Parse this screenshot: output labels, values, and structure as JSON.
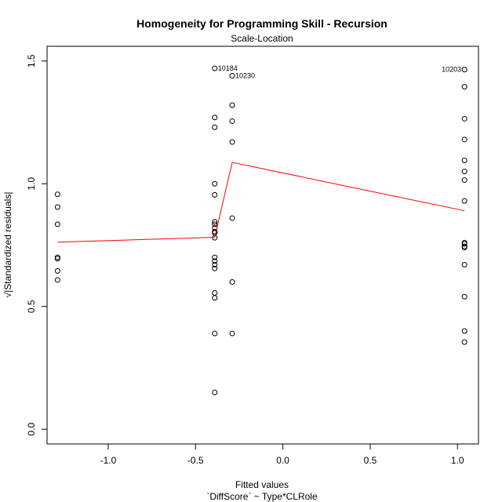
{
  "chart_data": {
    "type": "scatter",
    "title": "Homogeneity for Programming Skill - Recursion",
    "subtitle": "Scale-Location",
    "xlabel": "Fitted values",
    "xlabel2": "`DiffScore` ~ Type*CLRole",
    "ylabel": "√|Standardized residuals|",
    "xlim": [
      -1.35,
      1.12
    ],
    "ylim": [
      -0.06,
      1.56
    ],
    "x_ticks": [
      -1.0,
      -0.5,
      0.0,
      0.5,
      1.0
    ],
    "x_tick_labels": [
      "-1.0",
      "-0.5",
      "0.0",
      "0.5",
      "1.0"
    ],
    "y_ticks": [
      0.0,
      0.5,
      1.0,
      1.5
    ],
    "y_tick_labels": [
      "0.0",
      "0.5",
      "1.0",
      "1.5"
    ],
    "grid": false,
    "point_color": "#000000",
    "smooth_color": "#ff0000",
    "points": [
      {
        "x": -1.29,
        "y": 0.957
      },
      {
        "x": -1.29,
        "y": 0.905
      },
      {
        "x": -1.29,
        "y": 0.835
      },
      {
        "x": -1.29,
        "y": 0.7
      },
      {
        "x": -1.29,
        "y": 0.695
      },
      {
        "x": -1.29,
        "y": 0.645
      },
      {
        "x": -1.29,
        "y": 0.608
      },
      {
        "x": -0.39,
        "y": 1.47
      },
      {
        "x": -0.39,
        "y": 1.27
      },
      {
        "x": -0.39,
        "y": 1.23
      },
      {
        "x": -0.39,
        "y": 1.0
      },
      {
        "x": -0.39,
        "y": 0.955
      },
      {
        "x": -0.39,
        "y": 0.845
      },
      {
        "x": -0.39,
        "y": 0.835
      },
      {
        "x": -0.39,
        "y": 0.82
      },
      {
        "x": -0.39,
        "y": 0.805
      },
      {
        "x": -0.39,
        "y": 0.8
      },
      {
        "x": -0.39,
        "y": 0.78
      },
      {
        "x": -0.39,
        "y": 0.7
      },
      {
        "x": -0.39,
        "y": 0.685
      },
      {
        "x": -0.39,
        "y": 0.67
      },
      {
        "x": -0.39,
        "y": 0.655
      },
      {
        "x": -0.39,
        "y": 0.555
      },
      {
        "x": -0.39,
        "y": 0.535
      },
      {
        "x": -0.39,
        "y": 0.39
      },
      {
        "x": -0.39,
        "y": 0.15
      },
      {
        "x": -0.29,
        "y": 1.44
      },
      {
        "x": -0.29,
        "y": 1.32
      },
      {
        "x": -0.29,
        "y": 1.255
      },
      {
        "x": -0.29,
        "y": 1.17
      },
      {
        "x": -0.29,
        "y": 0.86
      },
      {
        "x": -0.29,
        "y": 0.6
      },
      {
        "x": -0.29,
        "y": 0.39
      },
      {
        "x": 1.04,
        "y": 1.465
      },
      {
        "x": 1.04,
        "y": 1.395
      },
      {
        "x": 1.04,
        "y": 1.265
      },
      {
        "x": 1.04,
        "y": 1.18
      },
      {
        "x": 1.04,
        "y": 1.095
      },
      {
        "x": 1.04,
        "y": 1.05
      },
      {
        "x": 1.04,
        "y": 1.015
      },
      {
        "x": 1.04,
        "y": 0.93
      },
      {
        "x": 1.04,
        "y": 0.76
      },
      {
        "x": 1.04,
        "y": 0.755
      },
      {
        "x": 1.04,
        "y": 0.745
      },
      {
        "x": 1.04,
        "y": 0.74
      },
      {
        "x": 1.04,
        "y": 0.67
      },
      {
        "x": 1.04,
        "y": 0.54
      },
      {
        "x": 1.04,
        "y": 0.4
      },
      {
        "x": 1.04,
        "y": 0.355
      }
    ],
    "annotations": [
      {
        "x": -0.39,
        "y": 1.47,
        "text": "10184",
        "side": "right"
      },
      {
        "x": -0.29,
        "y": 1.44,
        "text": "10230",
        "side": "right"
      },
      {
        "x": 1.04,
        "y": 1.465,
        "text": "10203",
        "side": "left"
      }
    ],
    "smooth_line": {
      "x": [
        -1.29,
        -0.39,
        -0.29,
        1.04
      ],
      "y": [
        0.762,
        0.782,
        1.087,
        0.89
      ]
    }
  }
}
